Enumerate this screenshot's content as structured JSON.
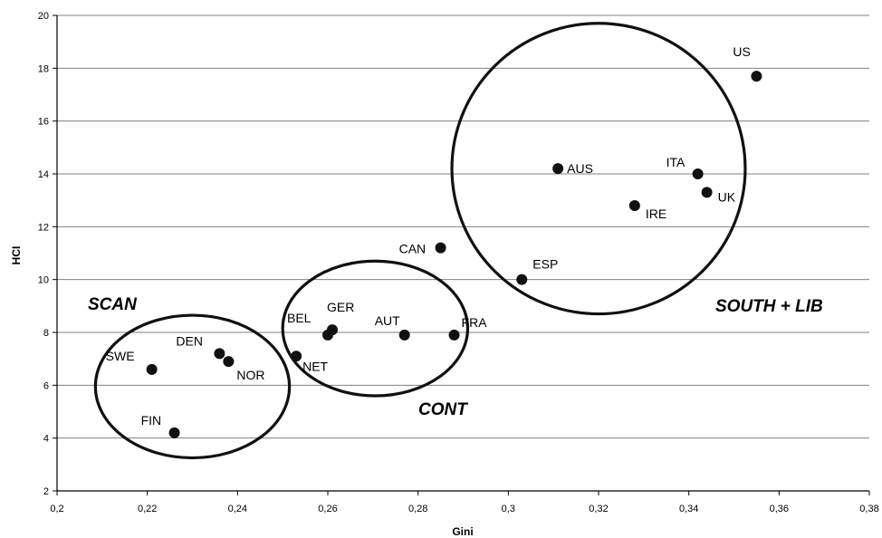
{
  "chart_data": {
    "type": "scatter",
    "title": "",
    "xlabel": "Gini",
    "ylabel": "HCI",
    "xlim": [
      0.2,
      0.38
    ],
    "ylim": [
      2,
      20
    ],
    "x_ticks": [
      "0,2",
      "0,22",
      "0,24",
      "0,26",
      "0,28",
      "0,3",
      "0,32",
      "0,34",
      "0,36",
      "0,38"
    ],
    "y_ticks": [
      "2",
      "4",
      "6",
      "8",
      "10",
      "12",
      "14",
      "16",
      "18",
      "20"
    ],
    "grid": {
      "horizontal": true,
      "vertical": false
    },
    "points": [
      {
        "label": "US",
        "x": 0.355,
        "y": 17.7
      },
      {
        "label": "AUS",
        "x": 0.311,
        "y": 14.2
      },
      {
        "label": "ITA",
        "x": 0.342,
        "y": 14.0
      },
      {
        "label": "UK",
        "x": 0.344,
        "y": 13.3
      },
      {
        "label": "IRE",
        "x": 0.328,
        "y": 12.8
      },
      {
        "label": "CAN",
        "x": 0.285,
        "y": 11.2
      },
      {
        "label": "ESP",
        "x": 0.303,
        "y": 10.0
      },
      {
        "label": "BEL",
        "x": 0.26,
        "y": 7.9
      },
      {
        "label": "GER",
        "x": 0.261,
        "y": 8.1
      },
      {
        "label": "AUT",
        "x": 0.277,
        "y": 7.9
      },
      {
        "label": "FRA",
        "x": 0.288,
        "y": 7.9
      },
      {
        "label": "NET",
        "x": 0.253,
        "y": 7.1
      },
      {
        "label": "DEN",
        "x": 0.236,
        "y": 7.2
      },
      {
        "label": "NOR",
        "x": 0.238,
        "y": 6.9
      },
      {
        "label": "SWE",
        "x": 0.221,
        "y": 6.6
      },
      {
        "label": "FIN",
        "x": 0.226,
        "y": 4.2
      }
    ],
    "groups": [
      {
        "label": "SCAN",
        "cx": 0.23,
        "cy": 5.95,
        "rx": 0.0215,
        "ry": 2.7
      },
      {
        "label": "CONT",
        "cx": 0.2705,
        "cy": 8.15,
        "rx": 0.0205,
        "ry": 2.55
      },
      {
        "label": "SOUTH + LIB",
        "cx": 0.32,
        "cy": 14.2,
        "rx": 0.0325,
        "ry": 5.5
      }
    ]
  }
}
